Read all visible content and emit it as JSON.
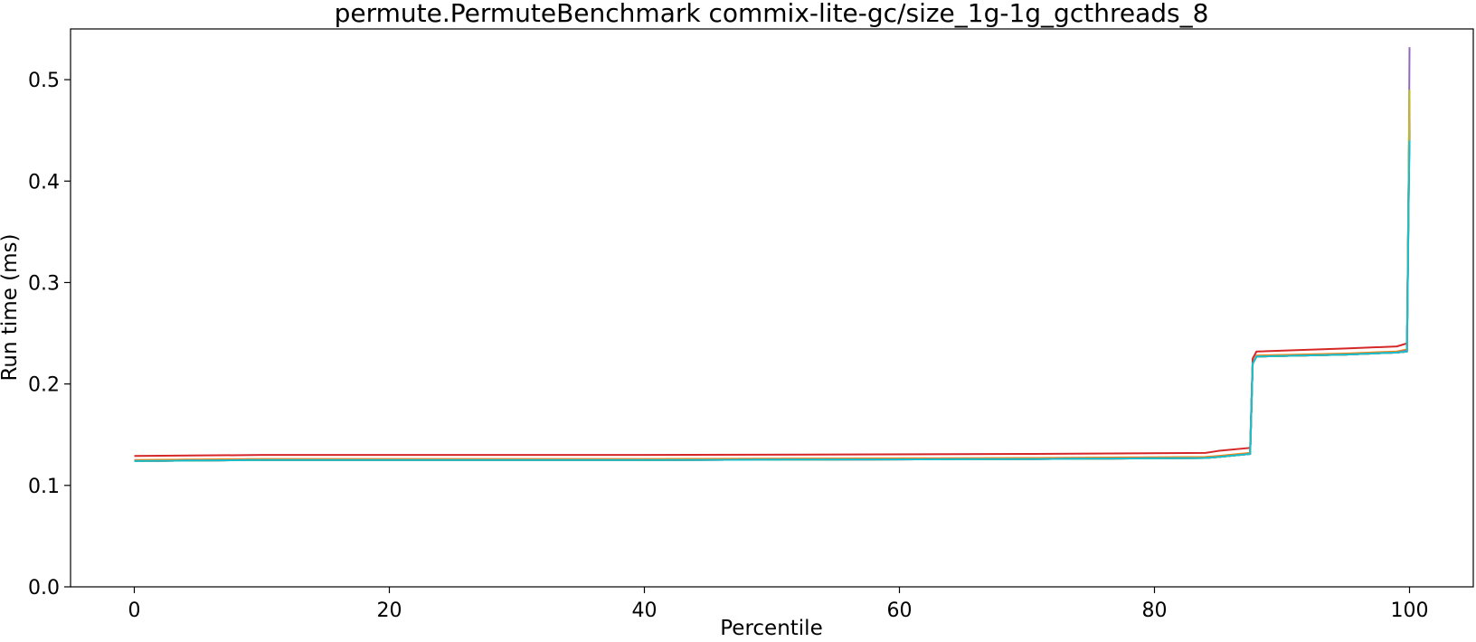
{
  "chart_data": {
    "type": "line",
    "title": "permute.PermuteBenchmark commix-lite-gc/size_1g-1g_gcthreads_8",
    "xlabel": "Percentile",
    "ylabel": "Run time (ms)",
    "xlim": [
      -5,
      105
    ],
    "ylim": [
      0,
      0.55
    ],
    "xticks": [
      0,
      20,
      40,
      60,
      80,
      100
    ],
    "xtick_labels": [
      "0",
      "20",
      "40",
      "60",
      "80",
      "100"
    ],
    "yticks": [
      0.0,
      0.1,
      0.2,
      0.3,
      0.4,
      0.5
    ],
    "ytick_labels": [
      "0.0",
      "0.1",
      "0.2",
      "0.3",
      "0.4",
      "0.5"
    ],
    "grid": false,
    "legend": "none",
    "series": [
      {
        "color": "#1f77b4",
        "x": [
          0,
          10,
          40,
          70,
          84,
          85,
          87.5,
          87.7,
          88,
          95,
          99,
          99.8,
          99.95,
          100
        ],
        "y": [
          0.124,
          0.125,
          0.125,
          0.126,
          0.127,
          0.128,
          0.131,
          0.22,
          0.227,
          0.229,
          0.231,
          0.232,
          0.4,
          0.44
        ]
      },
      {
        "color": "#ff7f0e",
        "x": [
          0,
          10,
          40,
          70,
          84,
          85,
          87.5,
          87.7,
          88,
          95,
          99,
          99.8,
          99.95,
          100
        ],
        "y": [
          0.125,
          0.126,
          0.126,
          0.127,
          0.128,
          0.129,
          0.132,
          0.22,
          0.228,
          0.23,
          0.232,
          0.234,
          0.42,
          0.48
        ]
      },
      {
        "color": "#2ca02c",
        "x": [
          0,
          10,
          40,
          70,
          84,
          85,
          87.5,
          87.7,
          88,
          95,
          99,
          99.8,
          99.95,
          100
        ],
        "y": [
          0.124,
          0.125,
          0.125,
          0.126,
          0.127,
          0.128,
          0.131,
          0.22,
          0.227,
          0.229,
          0.231,
          0.232,
          0.41,
          0.45
        ]
      },
      {
        "color": "#d62728",
        "x": [
          0,
          10,
          40,
          70,
          84,
          85,
          87.5,
          87.7,
          88,
          95,
          99,
          99.8,
          99.95,
          100
        ],
        "y": [
          0.129,
          0.13,
          0.13,
          0.131,
          0.132,
          0.134,
          0.137,
          0.225,
          0.232,
          0.235,
          0.237,
          0.24,
          0.42,
          0.47
        ]
      },
      {
        "color": "#9467bd",
        "x": [
          0,
          10,
          40,
          70,
          84,
          85,
          87.5,
          87.7,
          88,
          95,
          99,
          99.8,
          99.95,
          100
        ],
        "y": [
          0.124,
          0.125,
          0.125,
          0.126,
          0.127,
          0.128,
          0.131,
          0.22,
          0.227,
          0.229,
          0.231,
          0.233,
          0.43,
          0.532
        ]
      },
      {
        "color": "#8c564b",
        "x": [
          0,
          10,
          40,
          70,
          84,
          85,
          87.5,
          87.7,
          88,
          95,
          99,
          99.8,
          99.95,
          100
        ],
        "y": [
          0.124,
          0.125,
          0.125,
          0.126,
          0.127,
          0.128,
          0.131,
          0.22,
          0.227,
          0.229,
          0.231,
          0.232,
          0.42,
          0.46
        ]
      },
      {
        "color": "#e377c2",
        "x": [
          0,
          10,
          40,
          70,
          84,
          85,
          87.5,
          87.7,
          88,
          95,
          99,
          99.8,
          99.95,
          100
        ],
        "y": [
          0.124,
          0.125,
          0.125,
          0.126,
          0.127,
          0.128,
          0.131,
          0.22,
          0.227,
          0.229,
          0.231,
          0.232,
          0.42,
          0.47
        ]
      },
      {
        "color": "#7f7f7f",
        "x": [
          0,
          10,
          40,
          70,
          84,
          85,
          87.5,
          87.7,
          88,
          95,
          99,
          99.8,
          99.95,
          100
        ],
        "y": [
          0.124,
          0.125,
          0.125,
          0.126,
          0.127,
          0.128,
          0.131,
          0.22,
          0.227,
          0.229,
          0.231,
          0.232,
          0.41,
          0.45
        ]
      },
      {
        "color": "#bcbd22",
        "x": [
          0,
          10,
          40,
          70,
          84,
          85,
          87.5,
          87.7,
          88,
          95,
          99,
          99.8,
          99.95,
          100
        ],
        "y": [
          0.124,
          0.125,
          0.125,
          0.126,
          0.127,
          0.128,
          0.131,
          0.22,
          0.227,
          0.229,
          0.231,
          0.232,
          0.43,
          0.49
        ]
      },
      {
        "color": "#17becf",
        "x": [
          0,
          10,
          40,
          70,
          84,
          85,
          87.5,
          87.7,
          88,
          95,
          99,
          99.8,
          99.95,
          100
        ],
        "y": [
          0.124,
          0.125,
          0.125,
          0.126,
          0.127,
          0.128,
          0.131,
          0.22,
          0.227,
          0.229,
          0.231,
          0.232,
          0.4,
          0.44
        ]
      }
    ]
  }
}
